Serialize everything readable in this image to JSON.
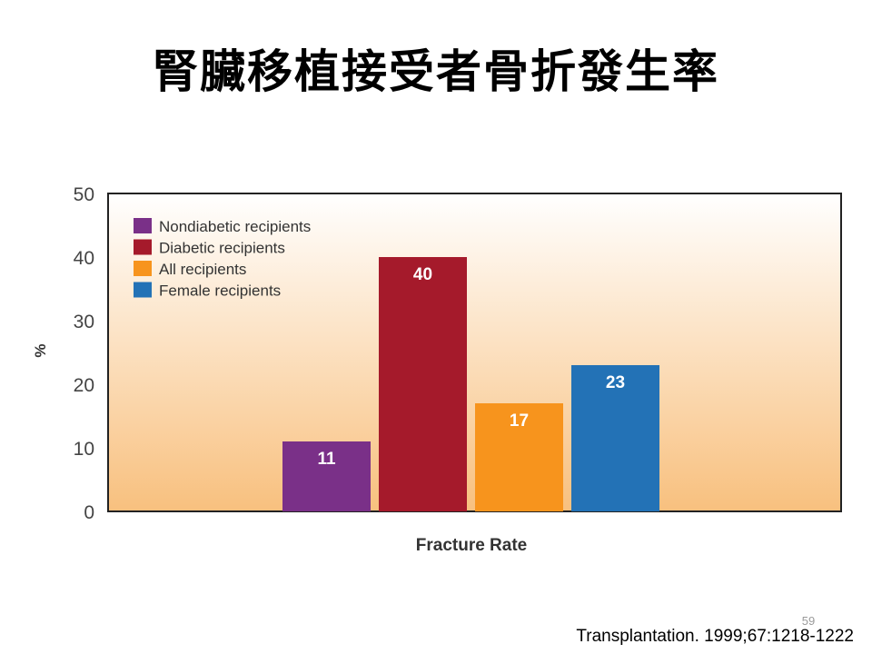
{
  "slide": {
    "title": "腎臟移植接受者骨折發生率",
    "citation": "Transplantation. 1999;67:1218-1222",
    "slide_number": "59"
  },
  "colors": {
    "nondiabetic": "#7a3088",
    "diabetic": "#a51a2b",
    "all": "#f7941d",
    "female": "#2372b6",
    "plot_bg_top": "#ffffff",
    "plot_bg_bottom": "#f8c07e"
  },
  "chart_data": {
    "type": "bar",
    "title": "",
    "xlabel": "Fracture Rate",
    "ylabel": "%",
    "ylim": [
      0,
      50
    ],
    "yticks": [
      0,
      10,
      20,
      30,
      40,
      50
    ],
    "grid": false,
    "legend_position": "top-left",
    "categories": [
      "Fracture Rate"
    ],
    "series": [
      {
        "name": "Nondiabetic recipients",
        "values": [
          11
        ],
        "label": "11",
        "color": "#7a3088"
      },
      {
        "name": "Diabetic recipients",
        "values": [
          40
        ],
        "label": "40",
        "color": "#a51a2b"
      },
      {
        "name": "All recipients",
        "values": [
          17
        ],
        "label": "17",
        "color": "#f7941d"
      },
      {
        "name": "Female recipients",
        "values": [
          23
        ],
        "label": "23",
        "color": "#2372b6"
      }
    ]
  }
}
